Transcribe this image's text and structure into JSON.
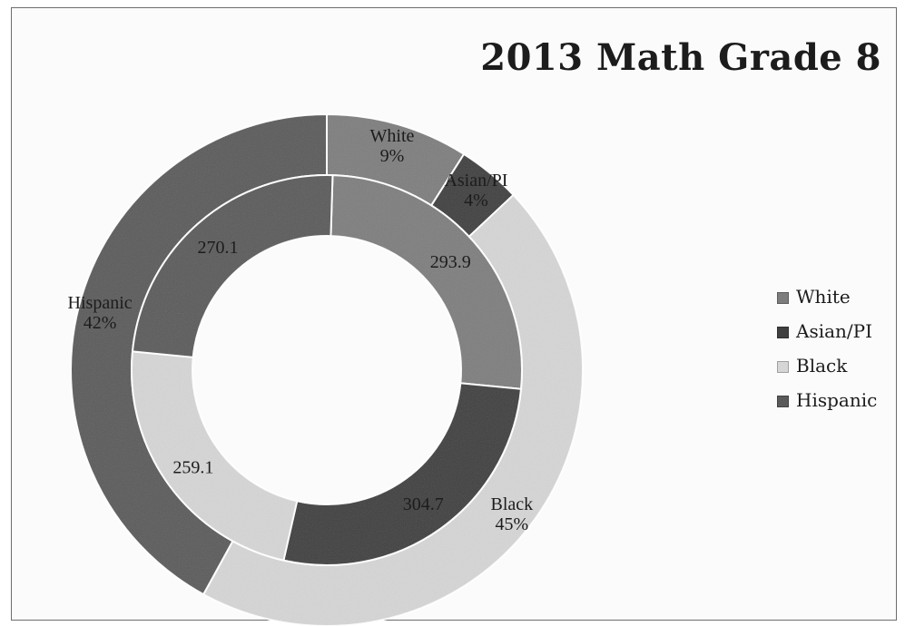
{
  "chart_data": {
    "type": "donut",
    "title": "2013 Math Grade 8",
    "categories": [
      "White",
      "Asian/PI",
      "Black",
      "Hispanic"
    ],
    "colors": [
      "#7d7d7d",
      "#3f3f3f",
      "#d6d6d6",
      "#5a5a5a"
    ],
    "legend_position": "right",
    "rings": [
      {
        "ring": "inner",
        "values": [
          293.9,
          304.7,
          259.1,
          270.1
        ],
        "labels": [
          "293.9",
          "304.7",
          "259.1",
          "270.1"
        ]
      },
      {
        "ring": "outer",
        "values": [
          9,
          4,
          45,
          42
        ],
        "labels": [
          "White\n9%",
          "Asian/PI\n4%",
          "Black\n45%",
          "Hispanic\n42%"
        ]
      }
    ]
  }
}
